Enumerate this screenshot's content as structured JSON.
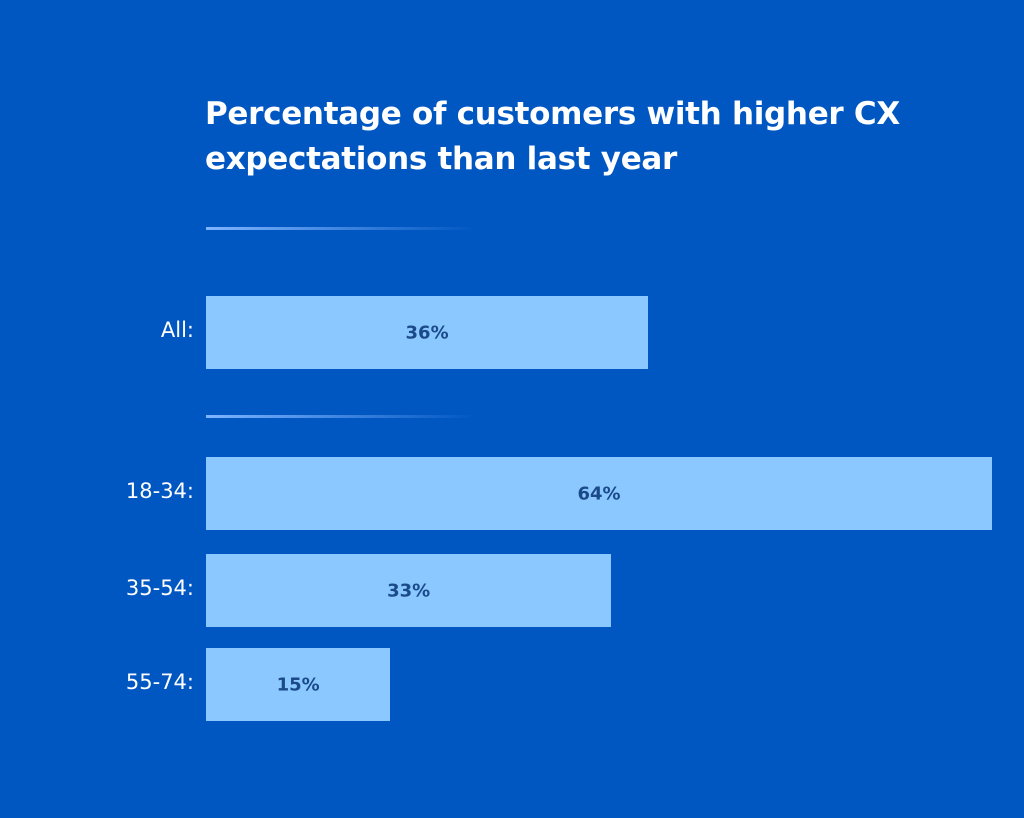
{
  "chart_data": {
    "type": "bar",
    "orientation": "horizontal",
    "title": "Percentage of customers with higher CX expectations than last year",
    "categories": [
      "All:",
      "18-34:",
      "35-54:",
      "55-74:"
    ],
    "values": [
      36,
      64,
      33,
      15
    ],
    "data_labels": [
      "36%",
      "64%",
      "33%",
      "15%"
    ],
    "unit": "%",
    "grid": false,
    "colors": {
      "background": "#0057c2",
      "bar": "#8ac8ff",
      "data_label": "#1b4a8a",
      "text": "#ffffff"
    }
  }
}
